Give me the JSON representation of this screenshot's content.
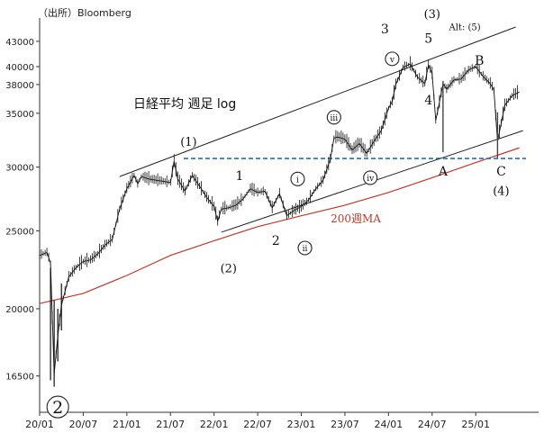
{
  "source": "（出所）Bloomberg",
  "chart_data": {
    "type": "line",
    "title": "日経平均 週足 log",
    "scale": "log",
    "grid": false,
    "ylim": [
      15000,
      47000
    ],
    "y_ticks": [
      {
        "value": 43000,
        "label": "43000"
      },
      {
        "value": 40000,
        "label": "40000"
      },
      {
        "value": 38000,
        "label": "38000"
      },
      {
        "value": 35000,
        "label": "35000"
      },
      {
        "value": 30000,
        "label": "30000"
      },
      {
        "value": 25000,
        "label": "25000"
      },
      {
        "value": 20000,
        "label": "20000"
      },
      {
        "value": 16500,
        "label": "16500"
      }
    ],
    "x_ticks": [
      {
        "value": 0,
        "label": "20/01"
      },
      {
        "value": 6,
        "label": "20/07"
      },
      {
        "value": 12,
        "label": "21/01"
      },
      {
        "value": 18,
        "label": "21/07"
      },
      {
        "value": 24,
        "label": "22/01"
      },
      {
        "value": 30,
        "label": "22/07"
      },
      {
        "value": 36,
        "label": "23/01"
      },
      {
        "value": 42,
        "label": "23/07"
      },
      {
        "value": 48,
        "label": "24/01"
      },
      {
        "value": 54,
        "label": "24/07"
      },
      {
        "value": 60,
        "label": "25/01"
      }
    ],
    "xlim": [
      0,
      66.5
    ],
    "series": [
      {
        "name": "",
        "color": "#111111",
        "x": [
          0,
          1,
          1.5,
          2,
          2.5,
          3,
          4,
          5,
          6,
          7,
          8,
          9,
          10,
          11,
          12,
          13,
          13.5,
          14,
          15,
          16,
          17,
          18,
          18.5,
          19,
          19.5,
          20,
          21,
          22,
          23,
          24,
          24.5,
          25,
          26,
          27,
          28,
          29,
          30,
          31,
          32,
          33,
          34,
          35,
          36,
          37,
          38,
          39,
          40,
          40.5,
          41,
          42,
          43,
          44,
          45,
          46,
          47,
          48,
          48.5,
          49,
          50,
          51,
          52,
          53,
          53.5,
          54,
          54.5,
          55,
          55.5,
          56,
          57,
          58,
          59,
          60,
          61,
          62,
          62.5,
          63,
          64,
          65,
          66
        ],
        "values": [
          23300,
          23500,
          22800,
          16600,
          18500,
          20200,
          21900,
          22500,
          22900,
          23000,
          23400,
          24000,
          24400,
          26600,
          28200,
          29300,
          28600,
          29200,
          29000,
          28900,
          28800,
          28700,
          30500,
          29000,
          28500,
          28000,
          29300,
          28400,
          27500,
          26800,
          25700,
          26600,
          26700,
          26900,
          27400,
          28200,
          27900,
          28000,
          26700,
          27800,
          26100,
          26500,
          26800,
          27300,
          28200,
          28900,
          30700,
          32600,
          32700,
          32500,
          31500,
          32100,
          31200,
          32300,
          33300,
          35500,
          36200,
          38000,
          39900,
          40300,
          38800,
          38100,
          40200,
          39200,
          34300,
          36100,
          38100,
          37500,
          38500,
          38600,
          39600,
          40000,
          38900,
          38100,
          37400,
          32300,
          35800,
          36800,
          37200
        ]
      },
      {
        "name": "200週MA",
        "color": "#c0392b",
        "x": [
          0,
          6,
          12,
          18,
          24,
          30,
          36,
          42,
          48,
          54,
          60,
          66
        ],
        "values": [
          20300,
          20900,
          22000,
          23300,
          24300,
          25300,
          26100,
          26900,
          27900,
          29100,
          30400,
          31700
        ]
      }
    ],
    "reference_line": {
      "value": 30750,
      "color": "#1f6fd1",
      "style": "dashed"
    },
    "channel_lines": [
      {
        "x": [
          11,
          65.5
        ],
        "values": [
          29200,
          44800
        ]
      },
      {
        "x": [
          25,
          66.5
        ],
        "values": [
          24900,
          33300
        ]
      }
    ],
    "spikes": [
      {
        "x": 55.5,
        "from": 31300,
        "to": 38400
      },
      {
        "x": 63,
        "from": 30800,
        "to": 35100
      }
    ],
    "annotations": [
      {
        "text": "3",
        "x": 47.5,
        "y": 44000,
        "style": "plain"
      },
      {
        "text": "(3)",
        "x": 54,
        "y": 46000,
        "style": "paren"
      },
      {
        "text": "5",
        "x": 53.5,
        "y": 42800,
        "style": "plain"
      },
      {
        "text": "Alt: (5)",
        "x": 58.5,
        "y": 44400,
        "style": "small"
      },
      {
        "text": "B",
        "x": 60.5,
        "y": 40200,
        "style": "serif"
      },
      {
        "text": "v",
        "x": 48.5,
        "y": 40900,
        "style": "circled"
      },
      {
        "text": "4",
        "x": 53.5,
        "y": 35900,
        "style": "plain"
      },
      {
        "text": "iii",
        "x": 40.5,
        "y": 34600,
        "style": "circled"
      },
      {
        "text": "iv",
        "x": 45.5,
        "y": 29100,
        "style": "circled"
      },
      {
        "text": "i",
        "x": 35.5,
        "y": 29000,
        "style": "circled"
      },
      {
        "text": "ii",
        "x": 36.5,
        "y": 23800,
        "style": "circled"
      },
      {
        "text": "(1)",
        "x": 20.5,
        "y": 31900,
        "style": "paren"
      },
      {
        "text": "1",
        "x": 27.5,
        "y": 28900,
        "style": "plain"
      },
      {
        "text": "2",
        "x": 32.5,
        "y": 24000,
        "style": "plain"
      },
      {
        "text": "(2)",
        "x": 26,
        "y": 22200,
        "style": "paren"
      },
      {
        "text": "A",
        "x": 55.5,
        "y": 29300,
        "style": "serif"
      },
      {
        "text": "C",
        "x": 63.5,
        "y": 29300,
        "style": "serif"
      },
      {
        "text": "(4)",
        "x": 63.5,
        "y": 27700,
        "style": "paren"
      },
      {
        "text": "200週MA",
        "x": 43.5,
        "y": 25600,
        "style": "red"
      },
      {
        "text": "2",
        "x": 2.5,
        "y": 15100,
        "style": "big-circled"
      }
    ]
  }
}
